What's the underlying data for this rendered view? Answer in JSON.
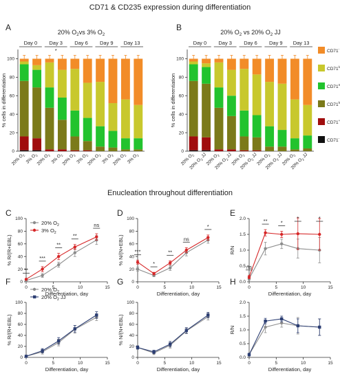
{
  "figure": {
    "title_top": "CD71 & CD235 expression during differentiation",
    "title_mid": "Enucleation throughout differentiation"
  },
  "colors": {
    "gray": "#8c8c8c",
    "red": "#d62728",
    "navy": "#2c3e73",
    "orange": "#f28c28",
    "lime": "#c8c82d",
    "green": "#22c32e",
    "olive": "#7b7a1a",
    "darkred": "#a00d0d",
    "black": "#111111"
  },
  "chart_data": [
    {
      "panel": "A",
      "type": "bar",
      "title": "20% O2vs 3% O2",
      "ylabel": "% cells in differentiation",
      "ylim": [
        0,
        110
      ],
      "yticks": [
        0,
        20,
        40,
        60,
        80,
        100
      ],
      "day_labels": [
        "Day 0",
        "Day 3",
        "Day 6",
        "Day 9",
        "Day 13"
      ],
      "day_annotations": [
        "",
        "*",
        "",
        "",
        ""
      ],
      "categories": [
        "20% O2",
        "3% O2",
        "20% O2",
        "3% O2",
        "20% O2",
        "3% O2",
        "20% O2",
        "3% O2",
        "20% O2",
        "3% O2"
      ],
      "series": [
        {
          "name": "CD71- CD235-",
          "color": "#111111",
          "values": [
            1,
            1,
            0,
            0,
            0,
            0,
            0,
            0,
            0,
            0
          ]
        },
        {
          "name": "CD71+ CD235-",
          "color": "#a00d0d",
          "values": [
            15,
            13,
            2,
            2,
            1,
            1,
            0,
            0,
            0,
            0
          ]
        },
        {
          "name": "CD71high CD235high",
          "color": "#7b7a1a",
          "values": [
            60,
            55,
            45,
            32,
            15,
            10,
            5,
            4,
            2,
            2
          ]
        },
        {
          "name": "CD71med CD235high",
          "color": "#22c32e",
          "values": [
            18,
            19,
            22,
            24,
            28,
            25,
            22,
            18,
            12,
            12
          ]
        },
        {
          "name": "CD71low CD235high",
          "color": "#c8c82d",
          "values": [
            3,
            5,
            27,
            30,
            45,
            38,
            48,
            30,
            42,
            36
          ]
        },
        {
          "name": "CD71- CD235high",
          "color": "#f28c28",
          "values": [
            3,
            7,
            4,
            12,
            11,
            26,
            25,
            48,
            44,
            50
          ]
        }
      ]
    },
    {
      "panel": "B",
      "type": "bar",
      "title": "20% O2 vs 20% O2 JJ",
      "ylabel": "% cells in differentiation",
      "ylim": [
        0,
        110
      ],
      "yticks": [
        0,
        20,
        40,
        60,
        80,
        100
      ],
      "day_labels": [
        "Day 0",
        "Day 3",
        "Day 6",
        "Day 9",
        "Day 13"
      ],
      "day_annotations": [
        "",
        "",
        "",
        "",
        ""
      ],
      "categories": [
        "20% O2",
        "20% O2 JJ",
        "20% O2",
        "20% O2 JJ",
        "20% O2",
        "20% O2 JJ",
        "20% O2",
        "20% O2 JJ",
        "20% O2",
        "20% O2 JJ"
      ],
      "series": [
        {
          "name": "CD71- CD235-",
          "color": "#111111",
          "values": [
            1,
            1,
            0,
            0,
            0,
            0,
            0,
            0,
            0,
            0
          ]
        },
        {
          "name": "CD71+ CD235-",
          "color": "#a00d0d",
          "values": [
            15,
            14,
            2,
            2,
            1,
            1,
            0,
            0,
            0,
            0
          ]
        },
        {
          "name": "CD71high CD235high",
          "color": "#7b7a1a",
          "values": [
            60,
            58,
            45,
            36,
            15,
            14,
            5,
            5,
            2,
            3
          ]
        },
        {
          "name": "CD71med CD235high",
          "color": "#22c32e",
          "values": [
            18,
            18,
            22,
            22,
            28,
            24,
            22,
            18,
            12,
            14
          ]
        },
        {
          "name": "CD71low CD235high",
          "color": "#c8c82d",
          "values": [
            3,
            4,
            27,
            28,
            45,
            44,
            48,
            50,
            42,
            33
          ]
        },
        {
          "name": "CD71- CD235high",
          "color": "#f28c28",
          "values": [
            3,
            5,
            4,
            12,
            11,
            17,
            25,
            27,
            44,
            50
          ]
        }
      ]
    },
    {
      "panel": "C",
      "type": "line",
      "ylabel": "% R/(R+EBL)",
      "xlabel": "Differentiation, day",
      "xlim": [
        0,
        15
      ],
      "ylim": [
        0,
        100
      ],
      "xticks": [
        0,
        5,
        10,
        15
      ],
      "yticks": [
        0,
        20,
        40,
        60,
        80,
        100
      ],
      "x": [
        0,
        3,
        6,
        9,
        13
      ],
      "series": [
        {
          "name": "20% O2",
          "color": "#8c8c8c",
          "marker": "circle",
          "values": [
            2,
            10,
            27,
            46,
            66
          ],
          "err": [
            1,
            3,
            4,
            6,
            7
          ]
        },
        {
          "name": "3% O2",
          "color": "#d62728",
          "marker": "circle",
          "values": [
            4,
            20,
            40,
            55,
            71
          ],
          "err": [
            1,
            4,
            5,
            4,
            5
          ]
        }
      ],
      "annotations": [
        {
          "x": 0,
          "text": "**"
        },
        {
          "x": 3,
          "text": "***"
        },
        {
          "x": 6,
          "text": "**"
        },
        {
          "x": 9,
          "text": "**"
        },
        {
          "x": 13,
          "text": "ns"
        }
      ]
    },
    {
      "panel": "D",
      "type": "line",
      "ylabel": "% N/(N+EBL)",
      "xlabel": "Differentiation, day",
      "xlim": [
        0,
        15
      ],
      "ylim": [
        0,
        100
      ],
      "xticks": [
        0,
        5,
        10,
        15
      ],
      "yticks": [
        0,
        20,
        40,
        60,
        80,
        100
      ],
      "x": [
        0,
        3,
        6,
        9,
        13
      ],
      "series": [
        {
          "name": "20% O2",
          "color": "#8c8c8c",
          "values": [
            20,
            10,
            22,
            46,
            66
          ],
          "err": [
            3,
            2,
            4,
            5,
            5
          ]
        },
        {
          "name": "3% O2",
          "color": "#d62728",
          "values": [
            31,
            13,
            30,
            50,
            70
          ],
          "err": [
            3,
            2,
            3,
            4,
            4
          ]
        }
      ],
      "annotations": [
        {
          "x": 0,
          "text": "***"
        },
        {
          "x": 3,
          "text": "*"
        },
        {
          "x": 6,
          "text": "**"
        },
        {
          "x": 9,
          "text": "ns"
        },
        {
          "x": 13,
          "text": "*"
        }
      ]
    },
    {
      "panel": "E",
      "type": "line",
      "ylabel": "R/N",
      "xlabel": "Differentiation, day",
      "xlim": [
        0,
        15
      ],
      "ylim": [
        0,
        2.0
      ],
      "xticks": [
        0,
        5,
        10,
        15
      ],
      "yticks": [
        0,
        0.5,
        1.0,
        1.5,
        2.0
      ],
      "x": [
        0,
        3,
        6,
        9,
        13
      ],
      "series": [
        {
          "name": "20% O2",
          "color": "#8c8c8c",
          "values": [
            0.1,
            1.05,
            1.2,
            1.05,
            1.0
          ],
          "err": [
            0.05,
            0.2,
            0.15,
            0.3,
            0.4
          ]
        },
        {
          "name": "3% O2",
          "color": "#d62728",
          "values": [
            0.15,
            1.55,
            1.5,
            1.52,
            1.5
          ],
          "err": [
            0.05,
            0.1,
            0.1,
            0.5,
            0.5
          ]
        }
      ],
      "annotations": [
        {
          "x": 0,
          "text": "ns"
        },
        {
          "x": 3,
          "text": "**"
        },
        {
          "x": 6,
          "text": "*"
        },
        {
          "x": 9,
          "text": "*"
        },
        {
          "x": 13,
          "text": "*"
        }
      ]
    },
    {
      "panel": "F",
      "type": "line",
      "ylabel": "% R/(R+EBL)",
      "xlabel": "Differentiation, day",
      "xlim": [
        0,
        15
      ],
      "ylim": [
        0,
        100
      ],
      "xticks": [
        0,
        5,
        10,
        15
      ],
      "yticks": [
        0,
        20,
        40,
        60,
        80,
        100
      ],
      "x": [
        0,
        3,
        6,
        9,
        13
      ],
      "series": [
        {
          "name": "20% O2",
          "color": "#8c8c8c",
          "values": [
            2,
            10,
            27,
            51,
            73
          ],
          "err": [
            1,
            4,
            6,
            7,
            6
          ]
        },
        {
          "name": "20% O2 JJ",
          "color": "#2c3e73",
          "values": [
            2,
            12,
            30,
            52,
            77
          ],
          "err": [
            1,
            4,
            6,
            6,
            6
          ]
        }
      ],
      "annotations": []
    },
    {
      "panel": "G",
      "type": "line",
      "ylabel": "% N/(N+EBL)",
      "xlabel": "Differentiation, day",
      "xlim": [
        0,
        15
      ],
      "ylim": [
        0,
        100
      ],
      "xticks": [
        0,
        5,
        10,
        15
      ],
      "yticks": [
        0,
        20,
        40,
        60,
        80,
        100
      ],
      "x": [
        0,
        3,
        6,
        9,
        13
      ],
      "series": [
        {
          "name": "20% O2",
          "color": "#8c8c8c",
          "values": [
            18,
            8,
            22,
            48,
            74
          ],
          "err": [
            3,
            3,
            5,
            5,
            6
          ]
        },
        {
          "name": "20% O2 JJ",
          "color": "#2c3e73",
          "values": [
            18,
            10,
            24,
            49,
            77
          ],
          "err": [
            3,
            3,
            5,
            5,
            5
          ]
        }
      ],
      "annotations": []
    },
    {
      "panel": "H",
      "type": "line",
      "ylabel": "R/N",
      "xlabel": "Differentiation, day",
      "xlim": [
        0,
        15
      ],
      "ylim": [
        0,
        2.0
      ],
      "xticks": [
        0,
        5,
        10,
        15
      ],
      "yticks": [
        0,
        0.5,
        1.0,
        1.5,
        2.0
      ],
      "x": [
        0,
        3,
        6,
        9,
        13
      ],
      "series": [
        {
          "name": "20% O2",
          "color": "#8c8c8c",
          "values": [
            0.1,
            1.1,
            1.25,
            1.15,
            1.1
          ],
          "err": [
            0.05,
            0.2,
            0.15,
            0.3,
            0.3
          ]
        },
        {
          "name": "20% O2 JJ",
          "color": "#2c3e73",
          "values": [
            0.1,
            1.32,
            1.4,
            1.15,
            1.1
          ],
          "err": [
            0.05,
            0.1,
            0.1,
            0.25,
            0.3
          ]
        }
      ],
      "annotations": []
    }
  ]
}
